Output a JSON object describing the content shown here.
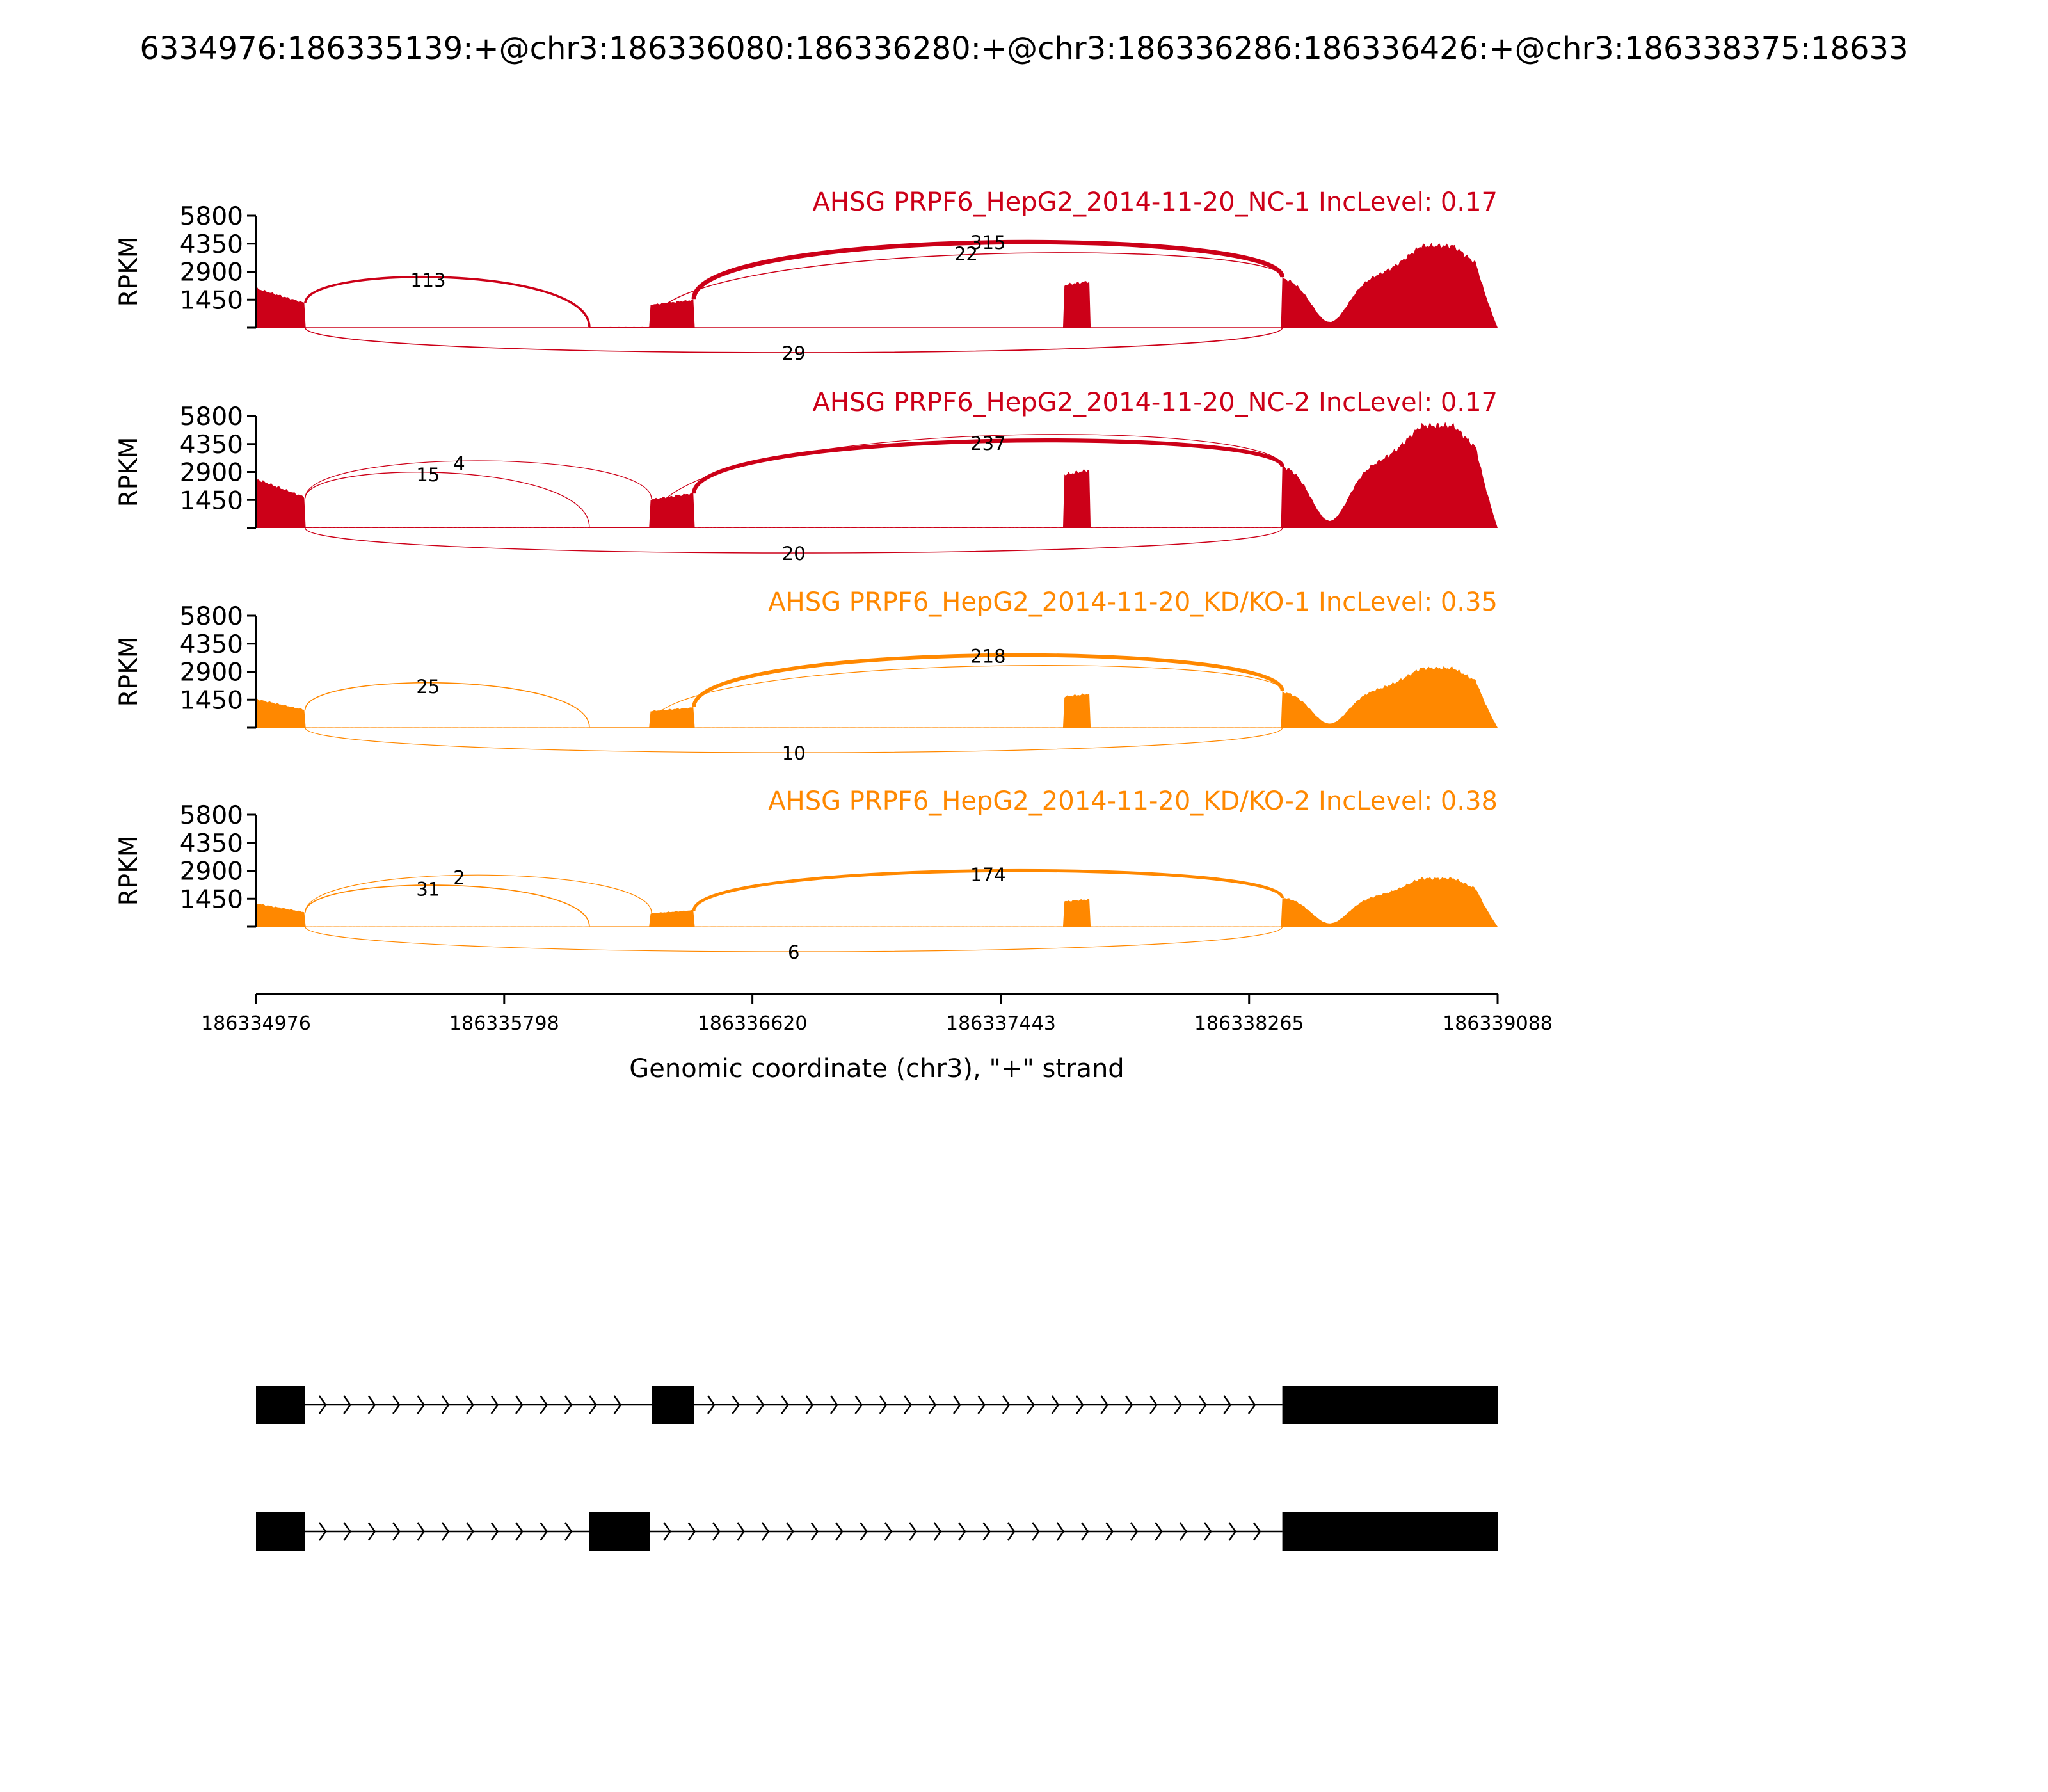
{
  "figure_title": "6334976:186335139:+@chr3:186336080:186336280:+@chr3:186336286:186336426:+@chr3:186338375:18633",
  "chart_data": {
    "type": "area",
    "subtype": "sashimi",
    "x_range": [
      186334976,
      186339088
    ],
    "xticks": [
      "186334976",
      "186335798",
      "186336620",
      "186337443",
      "186338265",
      "186339088"
    ],
    "xlabel": "Genomic coordinate (chr3), \"+\" strand",
    "ylabel": "RPKM",
    "yticks": [
      "5800",
      "4350",
      "2900",
      "1450"
    ],
    "ylim": [
      0,
      5800
    ],
    "exons": [
      [
        186334976,
        186335139
      ],
      [
        186336080,
        186336280
      ],
      [
        186336286,
        186336426
      ],
      [
        186338375,
        186339088
      ]
    ],
    "samples": [
      {
        "label": "AHSG PRPF6_HepG2_2014-11-20_NC-1 IncLevel: 0.17",
        "color": "#cc0018",
        "max_rpkm": 4400,
        "junctions": [
          {
            "start": 186335139,
            "end": 186336080,
            "count": "113",
            "side": "above"
          },
          {
            "start": 186336426,
            "end": 186338375,
            "count": "315",
            "side": "above"
          },
          {
            "start": 186336280,
            "end": 186338375,
            "count": "22",
            "side": "above"
          },
          {
            "start": 186335139,
            "end": 186338375,
            "count": "29",
            "side": "below"
          }
        ]
      },
      {
        "label": "AHSG PRPF6_HepG2_2014-11-20_NC-2 IncLevel: 0.17",
        "color": "#cc0018",
        "max_rpkm": 5500,
        "junctions": [
          {
            "start": 186335139,
            "end": 186336080,
            "count": "15",
            "side": "above"
          },
          {
            "start": 186335139,
            "end": 186336286,
            "count": "4",
            "side": "above"
          },
          {
            "start": 186336426,
            "end": 186338375,
            "count": "237",
            "side": "above"
          },
          {
            "start": 186336280,
            "end": 186338375,
            "count": "",
            "side": "above"
          },
          {
            "start": 186335139,
            "end": 186338375,
            "count": "20",
            "side": "below"
          }
        ]
      },
      {
        "label": "AHSG PRPF6_HepG2_2014-11-20_KD/KO-1 IncLevel: 0.35",
        "color": "#ff8800",
        "max_rpkm": 3200,
        "junctions": [
          {
            "start": 186335139,
            "end": 186336080,
            "count": "25",
            "side": "above"
          },
          {
            "start": 186336426,
            "end": 186338375,
            "count": "218",
            "side": "above"
          },
          {
            "start": 186336280,
            "end": 186338375,
            "count": "",
            "side": "above"
          },
          {
            "start": 186335139,
            "end": 186338375,
            "count": "10",
            "side": "below"
          }
        ]
      },
      {
        "label": "AHSG PRPF6_HepG2_2014-11-20_KD/KO-2 IncLevel: 0.38",
        "color": "#ff8800",
        "max_rpkm": 2600,
        "junctions": [
          {
            "start": 186335139,
            "end": 186336080,
            "count": "31",
            "side": "above"
          },
          {
            "start": 186335139,
            "end": 186336286,
            "count": "2",
            "side": "above"
          },
          {
            "start": 186336426,
            "end": 186338375,
            "count": "174",
            "side": "above"
          },
          {
            "start": 186335139,
            "end": 186338375,
            "count": "6",
            "side": "below"
          }
        ]
      }
    ],
    "transcripts": [
      {
        "exons": [
          [
            186334976,
            186335139
          ],
          [
            186336286,
            186336426
          ],
          [
            186338375,
            186339088
          ]
        ]
      },
      {
        "exons": [
          [
            186334976,
            186335139
          ],
          [
            186336080,
            186336280
          ],
          [
            186338375,
            186339088
          ]
        ]
      }
    ]
  }
}
